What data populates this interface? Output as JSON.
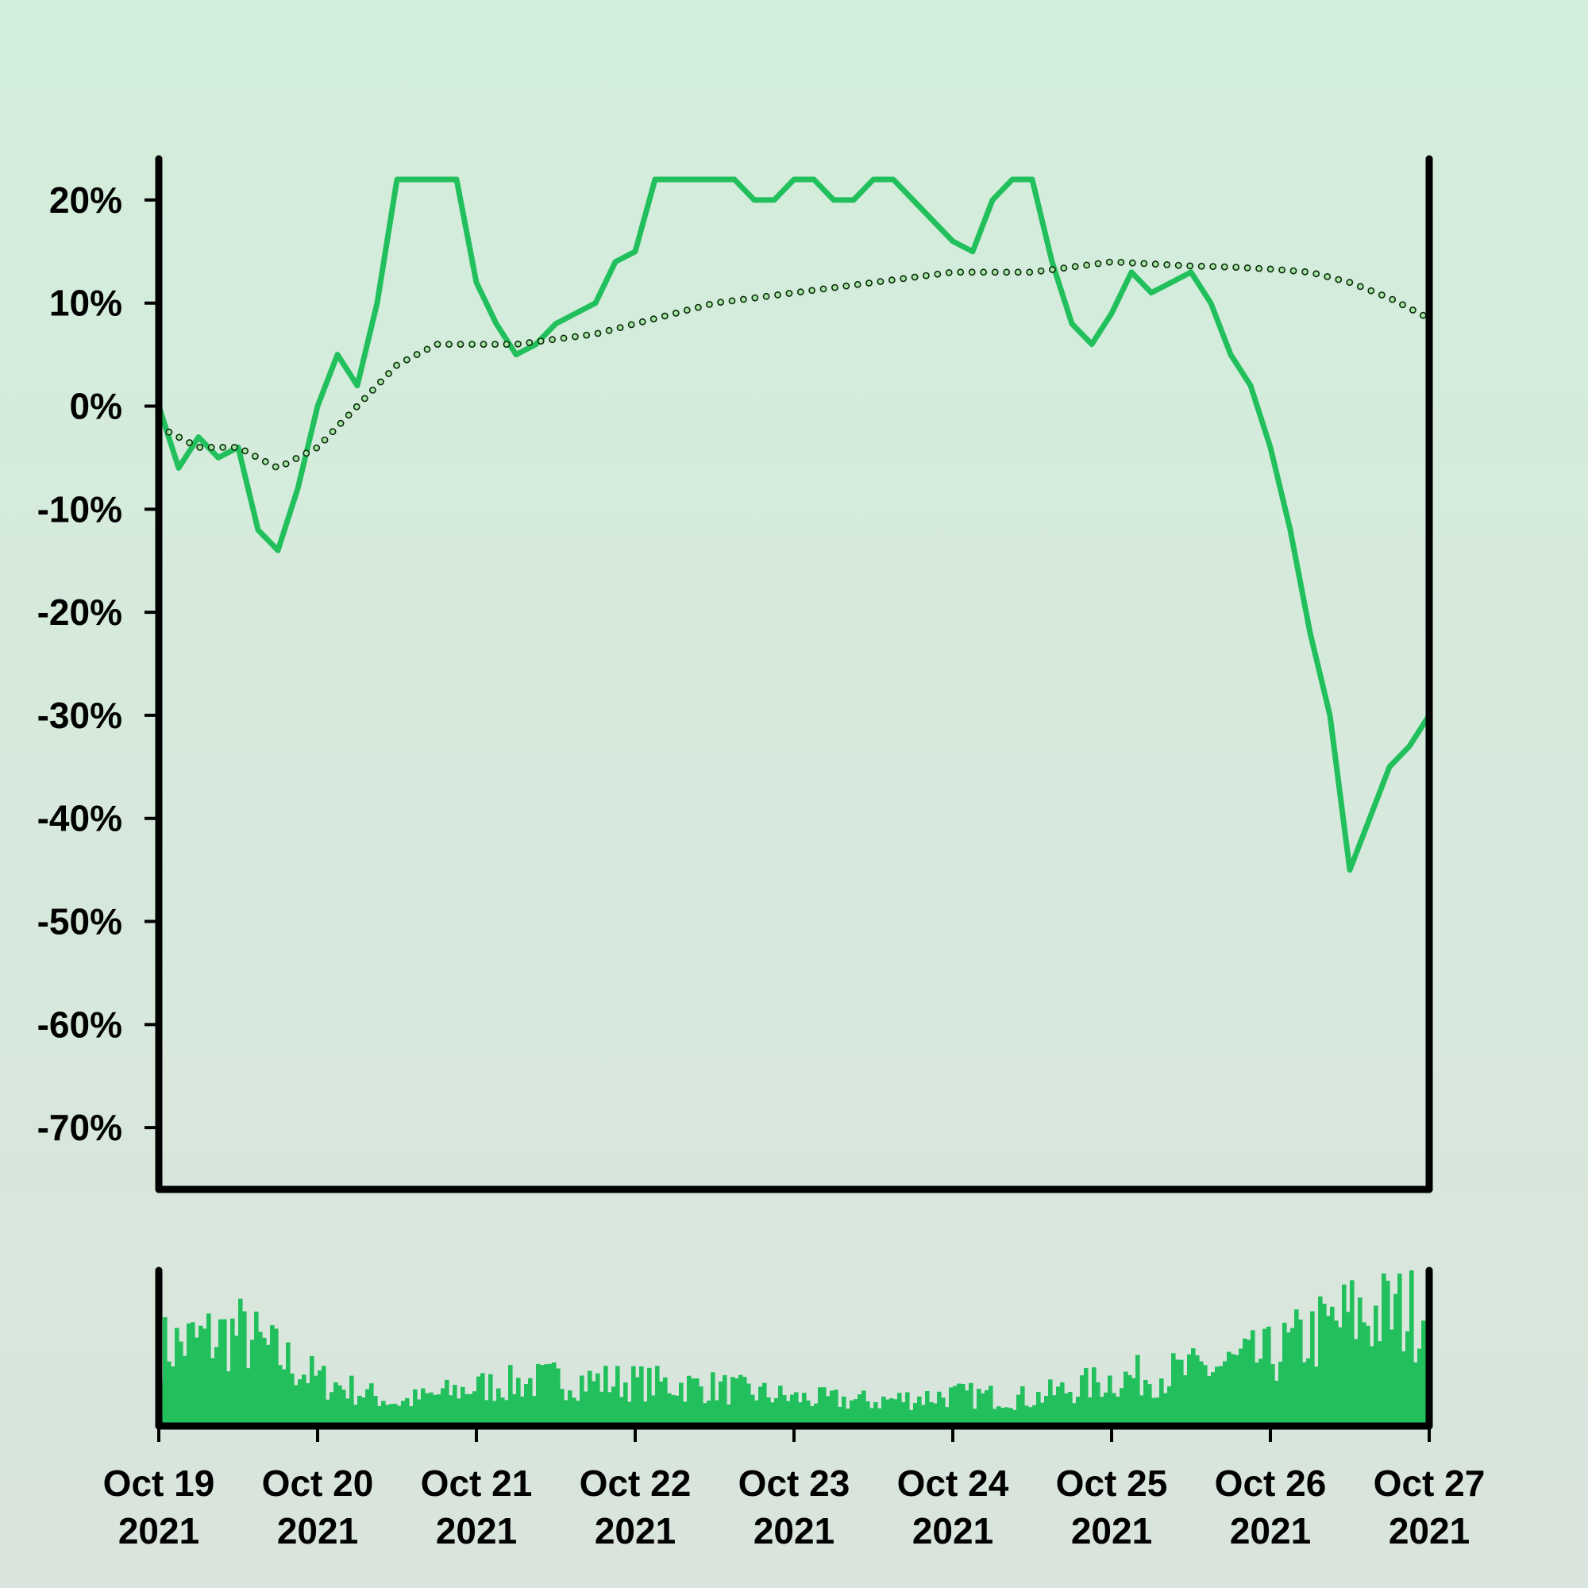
{
  "colors": {
    "line": "#22c05c",
    "volume": "#22c05c",
    "trend_fill": "#a8e6a8",
    "trend_stroke": "#0a2a0a",
    "axis": "#000000",
    "background_top": "#d3eedb",
    "background_bottom": "#d9e4dc"
  },
  "chart_data": {
    "type": "line",
    "price_panel": {
      "y_unit": "%",
      "ylim": [
        -76,
        24
      ],
      "y_ticks": [
        20,
        10,
        0,
        -10,
        -20,
        -30,
        -40,
        -50,
        -60,
        -70
      ],
      "y_tick_labels": [
        "20%",
        "10%",
        "0%",
        "-10%",
        "-20%",
        "-30%",
        "-40%",
        "-50%",
        "-60%",
        "-70%"
      ],
      "series": [
        {
          "style": "solid line",
          "x": [
            "2021-10-19 00:00",
            "2021-10-19 03:00",
            "2021-10-19 06:00",
            "2021-10-19 09:00",
            "2021-10-19 12:00",
            "2021-10-19 15:00",
            "2021-10-19 18:00",
            "2021-10-19 21:00",
            "2021-10-20 00:00",
            "2021-10-20 03:00",
            "2021-10-20 06:00",
            "2021-10-20 09:00",
            "2021-10-20 12:00",
            "2021-10-20 15:00",
            "2021-10-20 18:00",
            "2021-10-20 21:00",
            "2021-10-21 00:00",
            "2021-10-21 03:00",
            "2021-10-21 06:00",
            "2021-10-21 09:00",
            "2021-10-21 12:00",
            "2021-10-21 15:00",
            "2021-10-21 18:00",
            "2021-10-21 21:00",
            "2021-10-22 00:00",
            "2021-10-22 03:00",
            "2021-10-22 06:00",
            "2021-10-22 09:00",
            "2021-10-22 12:00",
            "2021-10-22 15:00",
            "2021-10-22 18:00",
            "2021-10-22 21:00",
            "2021-10-23 00:00",
            "2021-10-23 03:00",
            "2021-10-23 06:00",
            "2021-10-23 09:00",
            "2021-10-23 12:00",
            "2021-10-23 15:00",
            "2021-10-23 18:00",
            "2021-10-23 21:00",
            "2021-10-24 00:00",
            "2021-10-24 03:00",
            "2021-10-24 06:00",
            "2021-10-24 09:00",
            "2021-10-24 12:00",
            "2021-10-24 15:00",
            "2021-10-24 18:00",
            "2021-10-24 21:00",
            "2021-10-25 00:00",
            "2021-10-25 03:00",
            "2021-10-25 06:00",
            "2021-10-25 09:00",
            "2021-10-25 12:00",
            "2021-10-25 15:00",
            "2021-10-25 18:00",
            "2021-10-25 21:00",
            "2021-10-26 00:00",
            "2021-10-26 03:00",
            "2021-10-26 06:00",
            "2021-10-26 09:00",
            "2021-10-26 12:00",
            "2021-10-26 15:00",
            "2021-10-26 18:00",
            "2021-10-26 21:00",
            "2021-10-27 00:00"
          ],
          "y": [
            0,
            -6,
            -3,
            -5,
            -4,
            -12,
            -14,
            -8,
            0,
            5,
            2,
            10,
            22,
            22,
            22,
            22,
            12,
            8,
            5,
            6,
            8,
            9,
            10,
            14,
            15,
            22,
            22,
            22,
            22,
            22,
            20,
            20,
            22,
            22,
            20,
            20,
            22,
            22,
            20,
            18,
            16,
            15,
            20,
            22,
            22,
            14,
            8,
            6,
            9,
            13,
            11,
            12,
            13,
            10,
            5,
            2,
            -4,
            -12,
            -22,
            -30,
            -45,
            -40,
            -35,
            -33,
            -30
          ]
        },
        {
          "style": "dotted trend",
          "x": [
            "2021-10-19 00:00",
            "2021-10-19 06:00",
            "2021-10-19 12:00",
            "2021-10-19 18:00",
            "2021-10-20 00:00",
            "2021-10-20 06:00",
            "2021-10-20 12:00",
            "2021-10-20 18:00",
            "2021-10-21 00:00",
            "2021-10-21 06:00",
            "2021-10-21 12:00",
            "2021-10-21 18:00",
            "2021-10-22 00:00",
            "2021-10-22 06:00",
            "2021-10-22 12:00",
            "2021-10-22 18:00",
            "2021-10-23 00:00",
            "2021-10-23 06:00",
            "2021-10-23 12:00",
            "2021-10-23 18:00",
            "2021-10-24 00:00",
            "2021-10-24 06:00",
            "2021-10-24 12:00",
            "2021-10-24 18:00",
            "2021-10-25 00:00",
            "2021-10-25 06:00",
            "2021-10-25 12:00",
            "2021-10-25 18:00",
            "2021-10-26 00:00",
            "2021-10-26 06:00",
            "2021-10-26 12:00",
            "2021-10-26 18:00",
            "2021-10-27 00:00"
          ],
          "y": [
            -2,
            -4,
            -4,
            -6,
            -4,
            0,
            4,
            6,
            6,
            6,
            6.5,
            7,
            8,
            9,
            10,
            10.5,
            11,
            11.5,
            12,
            12.5,
            13,
            13,
            13,
            13.5,
            14,
            13.8,
            13.6,
            13.5,
            13.3,
            13,
            12,
            10.5,
            8.5
          ]
        }
      ]
    },
    "volume_panel": {
      "x": [
        "2021-10-19",
        "2021-10-19 12:00",
        "2021-10-20",
        "2021-10-20 12:00",
        "2021-10-21",
        "2021-10-21 12:00",
        "2021-10-22",
        "2021-10-22 12:00",
        "2021-10-23",
        "2021-10-23 12:00",
        "2021-10-24",
        "2021-10-24 12:00",
        "2021-10-25",
        "2021-10-25 12:00",
        "2021-10-26",
        "2021-10-26 12:00",
        "2021-10-27"
      ],
      "values": [
        0.5,
        0.6,
        0.3,
        0.15,
        0.25,
        0.3,
        0.28,
        0.25,
        0.18,
        0.16,
        0.2,
        0.18,
        0.3,
        0.35,
        0.45,
        0.7,
        0.75
      ]
    },
    "x_tick_labels": [
      {
        "date": "Oct 19",
        "year": "2021"
      },
      {
        "date": "Oct 20",
        "year": "2021"
      },
      {
        "date": "Oct 21",
        "year": "2021"
      },
      {
        "date": "Oct 22",
        "year": "2021"
      },
      {
        "date": "Oct 23",
        "year": "2021"
      },
      {
        "date": "Oct 24",
        "year": "2021"
      },
      {
        "date": "Oct 25",
        "year": "2021"
      },
      {
        "date": "Oct 26",
        "year": "2021"
      },
      {
        "date": "Oct 27",
        "year": "2021"
      }
    ],
    "grid": false,
    "legend": "none"
  }
}
